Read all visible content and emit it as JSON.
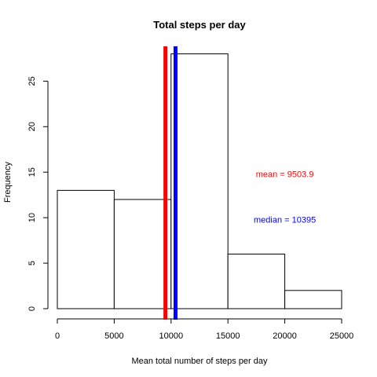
{
  "chart_data": {
    "type": "bar",
    "title": "Total steps per day",
    "xlabel": "Mean total number of steps per day",
    "ylabel": "Frequency",
    "bins": [
      {
        "from": 0,
        "to": 5000,
        "count": 13
      },
      {
        "from": 5000,
        "to": 10000,
        "count": 12
      },
      {
        "from": 10000,
        "to": 15000,
        "count": 28
      },
      {
        "from": 15000,
        "to": 20000,
        "count": 6
      },
      {
        "from": 20000,
        "to": 25000,
        "count": 2
      }
    ],
    "xticks": [
      0,
      5000,
      10000,
      15000,
      20000,
      25000
    ],
    "yticks": [
      0,
      5,
      10,
      15,
      20,
      25
    ],
    "xlim": [
      0,
      25000
    ],
    "ylim": [
      0,
      29
    ],
    "grid": false,
    "lines": [
      {
        "value": 9503.9,
        "color": "#ff0000",
        "label": "mean = 9503.9",
        "label_x": 20000,
        "label_y": 14.7
      },
      {
        "value": 10395,
        "color": "#0000ff",
        "label": "median = 10395",
        "label_x": 20000,
        "label_y": 9.7
      }
    ]
  }
}
